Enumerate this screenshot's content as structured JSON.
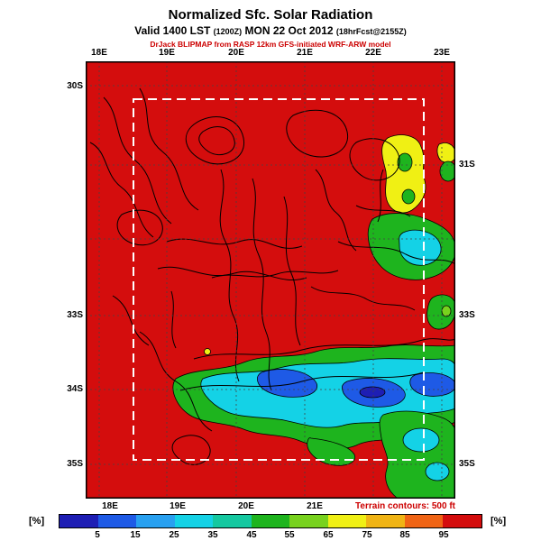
{
  "header": {
    "title": "Normalized Sfc. Solar Radiation",
    "valid_prefix": "Valid 1400 LST ",
    "valid_small1": "(1200Z)",
    "valid_mid": " MON 22 Oct 2012 ",
    "valid_small2": "(18hrFcst@2155Z)",
    "model_line": "DrJack BLIPMAP from RASP 12km GFS-initiated WRF-ARW model"
  },
  "map": {
    "field_color": "#d40d0d",
    "top_lon_labels": [
      "18E",
      "19E",
      "20E",
      "21E",
      "22E",
      "23E"
    ],
    "bottom_lon_labels": [
      "18E",
      "19E",
      "20E",
      "21E"
    ],
    "left_lat_labels": [
      "30S",
      "33S",
      "34S",
      "35S"
    ],
    "right_lat_labels": [
      "31S",
      "33S",
      "35S"
    ],
    "terrain_note": "Terrain contours: 500 ft"
  },
  "colorbar": {
    "unit": "[%]",
    "tick_labels": [
      "5",
      "15",
      "25",
      "35",
      "45",
      "55",
      "65",
      "75",
      "85",
      "95"
    ],
    "colors": [
      "#1e1eb4",
      "#1e5ae6",
      "#28a0f0",
      "#14d2e6",
      "#14c8a0",
      "#1eb41e",
      "#78d21e",
      "#f0f014",
      "#f0b414",
      "#f06414",
      "#d40d0d"
    ]
  },
  "palette": {
    "red": "#d40d0d",
    "yellow": "#f0f014",
    "yellow_green": "#78d21e",
    "green": "#1eb41e",
    "teal": "#14c8a0",
    "cyan": "#14d2e6",
    "light_blue": "#28a0f0",
    "blue": "#1e5ae6",
    "dark_blue": "#1e1eb4"
  }
}
